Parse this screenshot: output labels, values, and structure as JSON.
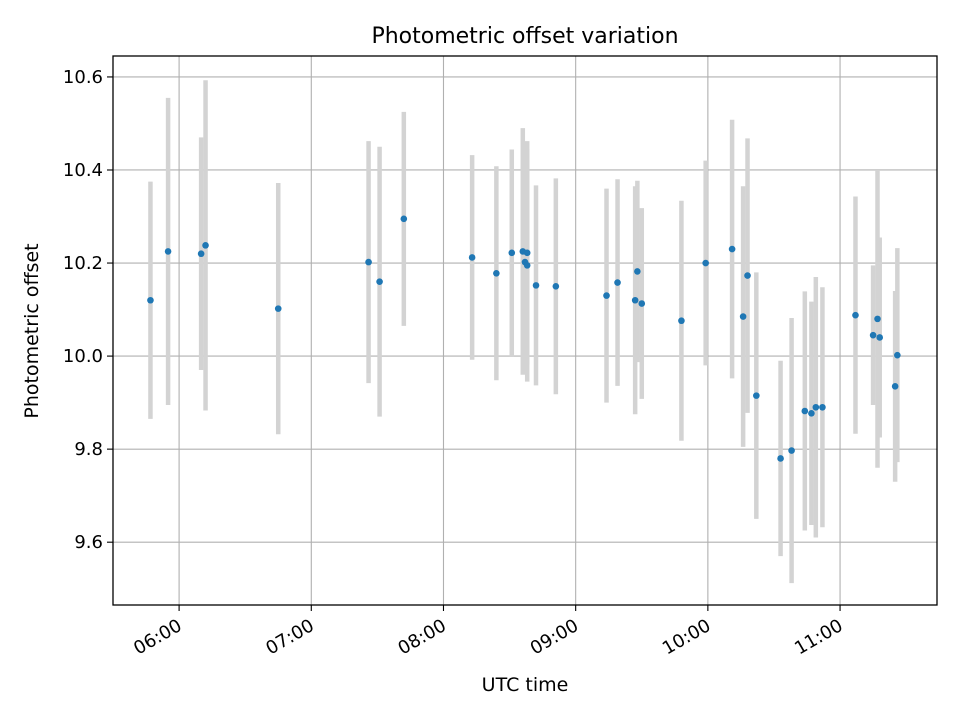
{
  "chart_data": {
    "type": "scatter",
    "title": "Photometric offset variation",
    "xlabel": "UTC time",
    "ylabel": "Photometric offset",
    "xlim": [
      "05:30",
      "11:44"
    ],
    "ylim": [
      9.465,
      10.645
    ],
    "grid": true,
    "x_ticks": [
      "06:00",
      "07:00",
      "08:00",
      "09:00",
      "10:00",
      "11:00"
    ],
    "y_ticks": [
      9.6,
      9.8,
      10.0,
      10.2,
      10.4,
      10.6
    ],
    "y_tick_labels": [
      "9.6",
      "9.8",
      "10.0",
      "10.2",
      "10.4",
      "10.6"
    ],
    "colors": {
      "point": "#1f77b4",
      "errorbar": "#d3d3d3",
      "grid": "#b0b0b0"
    },
    "series": [
      {
        "points": [
          {
            "x": "05:47",
            "y": 10.12,
            "yerr": 0.255
          },
          {
            "x": "05:55",
            "y": 10.225,
            "yerr": 0.33
          },
          {
            "x": "06:10",
            "y": 10.22,
            "yerr": 0.25
          },
          {
            "x": "06:12",
            "y": 10.238,
            "yerr": 0.355
          },
          {
            "x": "06:45",
            "y": 10.102,
            "yerr": 0.27
          },
          {
            "x": "07:26",
            "y": 10.202,
            "yerr": 0.26
          },
          {
            "x": "07:31",
            "y": 10.16,
            "yerr": 0.29
          },
          {
            "x": "07:42",
            "y": 10.295,
            "yerr": 0.23
          },
          {
            "x": "08:13",
            "y": 10.212,
            "yerr": 0.22
          },
          {
            "x": "08:24",
            "y": 10.178,
            "yerr": 0.23
          },
          {
            "x": "08:31",
            "y": 10.222,
            "yerr": 0.222
          },
          {
            "x": "08:36",
            "y": 10.225,
            "yerr": 0.265
          },
          {
            "x": "08:37",
            "y": 10.202,
            "yerr": 0.24
          },
          {
            "x": "08:38",
            "y": 10.222,
            "yerr": 0.24
          },
          {
            "x": "08:38",
            "y": 10.195,
            "yerr": 0.25
          },
          {
            "x": "08:42",
            "y": 10.152,
            "yerr": 0.215
          },
          {
            "x": "08:51",
            "y": 10.15,
            "yerr": 0.232
          },
          {
            "x": "09:14",
            "y": 10.13,
            "yerr": 0.23
          },
          {
            "x": "09:19",
            "y": 10.158,
            "yerr": 0.222
          },
          {
            "x": "09:27",
            "y": 10.12,
            "yerr": 0.245
          },
          {
            "x": "09:28",
            "y": 10.182,
            "yerr": 0.195
          },
          {
            "x": "09:30",
            "y": 10.113,
            "yerr": 0.205
          },
          {
            "x": "09:48",
            "y": 10.076,
            "yerr": 0.258
          },
          {
            "x": "09:59",
            "y": 10.2,
            "yerr": 0.22
          },
          {
            "x": "10:11",
            "y": 10.23,
            "yerr": 0.278
          },
          {
            "x": "10:16",
            "y": 10.085,
            "yerr": 0.28
          },
          {
            "x": "10:18",
            "y": 10.173,
            "yerr": 0.295
          },
          {
            "x": "10:22",
            "y": 9.915,
            "yerr": 0.265
          },
          {
            "x": "10:33",
            "y": 9.78,
            "yerr": 0.21
          },
          {
            "x": "10:38",
            "y": 9.797,
            "yerr": 0.285
          },
          {
            "x": "10:44",
            "y": 9.882,
            "yerr": 0.257
          },
          {
            "x": "10:47",
            "y": 9.877,
            "yerr": 0.24
          },
          {
            "x": "10:49",
            "y": 9.89,
            "yerr": 0.28
          },
          {
            "x": "10:52",
            "y": 9.89,
            "yerr": 0.258
          },
          {
            "x": "11:07",
            "y": 10.088,
            "yerr": 0.255
          },
          {
            "x": "11:15",
            "y": 10.045,
            "yerr": 0.15
          },
          {
            "x": "11:17",
            "y": 10.08,
            "yerr": 0.32
          },
          {
            "x": "11:18",
            "y": 10.04,
            "yerr": 0.215
          },
          {
            "x": "11:25",
            "y": 9.935,
            "yerr": 0.205
          },
          {
            "x": "11:26",
            "y": 10.002,
            "yerr": 0.23
          }
        ]
      }
    ]
  }
}
